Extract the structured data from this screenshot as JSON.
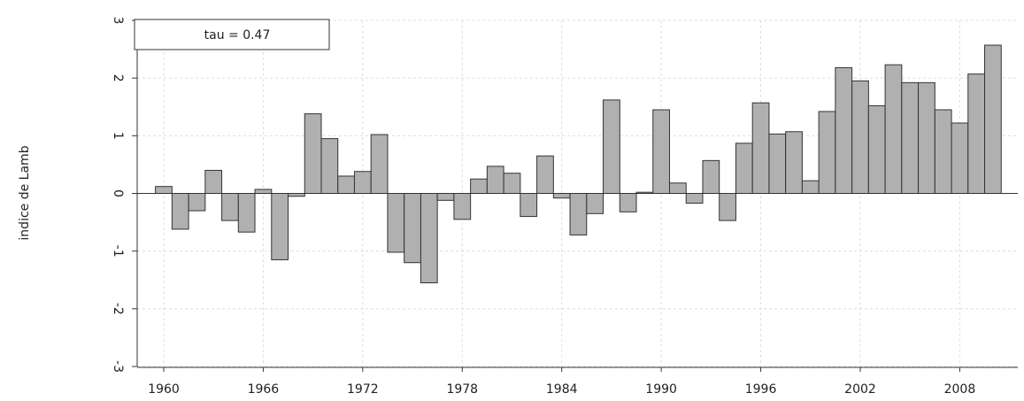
{
  "chart_data": {
    "type": "bar",
    "ylabel": "indice de Lamb",
    "annotation": "tau = 0.47",
    "x": [
      1960,
      1961,
      1962,
      1963,
      1964,
      1965,
      1966,
      1967,
      1968,
      1969,
      1970,
      1971,
      1972,
      1973,
      1974,
      1975,
      1976,
      1977,
      1978,
      1979,
      1980,
      1981,
      1982,
      1983,
      1984,
      1985,
      1986,
      1987,
      1988,
      1989,
      1990,
      1991,
      1992,
      1993,
      1994,
      1995,
      1996,
      1997,
      1998,
      1999,
      2000,
      2001,
      2002,
      2003,
      2004,
      2005,
      2006,
      2007,
      2008,
      2009,
      2010
    ],
    "values": [
      0.12,
      -0.62,
      -0.3,
      0.4,
      -0.47,
      -0.67,
      0.07,
      -1.15,
      -0.05,
      1.38,
      0.95,
      0.3,
      0.38,
      1.02,
      -1.02,
      -1.2,
      -1.55,
      -0.12,
      -0.45,
      0.25,
      0.47,
      0.35,
      -0.4,
      0.65,
      -0.08,
      -0.72,
      -0.35,
      1.62,
      -0.32,
      0.02,
      1.45,
      0.18,
      -0.17,
      0.57,
      -0.47,
      0.87,
      1.57,
      1.03,
      1.07,
      0.22,
      1.42,
      2.18,
      1.95,
      1.52,
      2.23,
      1.92,
      1.92,
      1.45,
      1.22,
      2.07,
      2.57
    ],
    "color": "#b0b0b0",
    "xlim": [
      1958.4,
      2011.5
    ],
    "xticks": [
      1960,
      1966,
      1972,
      1978,
      1984,
      1990,
      1996,
      2002,
      2008
    ],
    "ylim": [
      -3,
      3
    ],
    "yticks": [
      -3,
      -2,
      -1,
      0,
      1,
      2,
      3
    ],
    "grid": true
  }
}
